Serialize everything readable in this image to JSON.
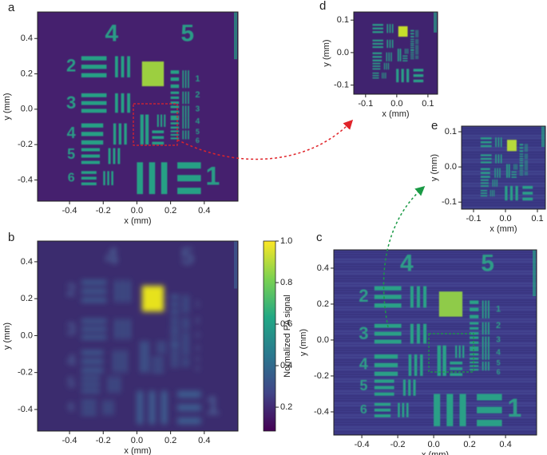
{
  "chart_data": [
    {
      "type": "image",
      "panel": "a",
      "xlabel": "x (mm)",
      "ylabel": "y (mm)",
      "xlim": [
        -0.59,
        0.6
      ],
      "ylim": [
        -0.52,
        0.55
      ],
      "xticks": [
        -0.4,
        -0.2,
        {
          "value": 0,
          "label": "0.0"
        },
        0.2,
        0.4
      ],
      "yticks": [
        -0.4,
        -0.2,
        {
          "value": 0,
          "label": "0.0"
        },
        0.2,
        0.4
      ],
      "target_labels": [
        "4",
        "5",
        "2",
        "3",
        "4",
        "5",
        "6",
        "1",
        "1",
        "2",
        "3",
        "4",
        "5",
        "6"
      ]
    },
    {
      "type": "image",
      "panel": "b",
      "xlabel": "x (mm)",
      "ylabel": "y (mm)",
      "xlim": [
        -0.59,
        0.6
      ],
      "ylim": [
        -0.517,
        0.512
      ],
      "xticks": [
        -0.4,
        -0.2,
        {
          "value": 0,
          "label": "0.0"
        },
        0.2,
        0.4
      ],
      "yticks": [
        -0.4,
        -0.2,
        {
          "value": 0,
          "label": "0.0"
        },
        0.2,
        0.4
      ],
      "target_labels": [
        "4",
        "5",
        "2",
        "3",
        "4",
        "5",
        "6",
        "1",
        "1",
        "2",
        "3",
        "4",
        "5",
        "6"
      ],
      "colorbar": {
        "label": "Normalized PA signal",
        "clim": [
          0.085,
          1.0
        ],
        "ticks": [
          0.2,
          0.4,
          0.6,
          0.8,
          {
            "value": 1,
            "label": "1.0"
          }
        ]
      }
    },
    {
      "type": "image",
      "panel": "c",
      "xlabel": "x (mm)",
      "ylabel": "y (mm)",
      "xlim": [
        -0.556,
        0.573
      ],
      "ylim": [
        -0.529,
        0.502
      ],
      "xticks": [
        -0.4,
        -0.2,
        {
          "value": 0,
          "label": "0.0"
        },
        0.2,
        0.4
      ],
      "yticks": [
        -0.4,
        -0.2,
        {
          "value": 0,
          "label": "0.0"
        },
        0.2,
        0.4
      ],
      "target_labels": [
        "4",
        "5",
        "2",
        "3",
        "4",
        "5",
        "6",
        "1",
        "1",
        "2",
        "3",
        "4",
        "5",
        "6"
      ]
    },
    {
      "type": "image",
      "panel": "d",
      "xlabel": "x (mm)",
      "ylabel": "y (mm)",
      "xlim": [
        -0.138,
        0.131
      ],
      "ylim": [
        -0.128,
        0.125
      ],
      "xticks": [
        -0.1,
        {
          "value": 0,
          "label": "0.0"
        },
        0.1
      ],
      "yticks": [
        -0.1,
        {
          "value": 0,
          "label": "0.0"
        },
        0.1
      ]
    },
    {
      "type": "image",
      "panel": "e",
      "xlabel": "x (mm)",
      "ylabel": "y (mm)",
      "xlim": [
        -0.1375,
        0.125
      ],
      "ylim": [
        -0.12,
        0.116
      ],
      "xticks": [
        -0.1,
        {
          "value": 0,
          "label": "0.0"
        },
        0.1
      ],
      "yticks": [
        -0.1,
        {
          "value": 0,
          "label": "0.0"
        },
        0.1
      ]
    }
  ]
}
